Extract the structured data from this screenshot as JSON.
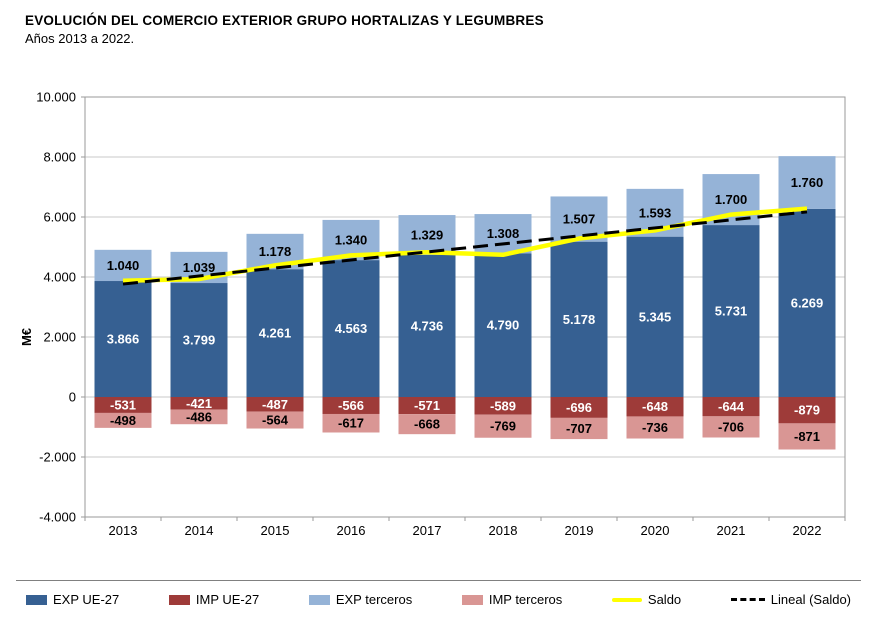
{
  "chart_data": {
    "type": "bar",
    "stacked": true,
    "title": "EVOLUCIÓN DEL COMERCIO EXTERIOR GRUPO HORTALIZAS Y LEGUMBRES",
    "subtitle": "Años 2013 a 2022.",
    "ylabel": "M€",
    "ylim": [
      -4000,
      10000
    ],
    "grid": true,
    "legend_position": "bottom",
    "yticks": {
      "values": [
        10000,
        8000,
        6000,
        4000,
        2000,
        0,
        -2000,
        -4000
      ],
      "labels": [
        "10.000",
        "8.000",
        "6.000",
        "4.000",
        "2.000",
        "0",
        "-2.000",
        "-4.000"
      ]
    },
    "categories": [
      "2013",
      "2014",
      "2015",
      "2016",
      "2017",
      "2018",
      "2019",
      "2020",
      "2021",
      "2022"
    ],
    "series": [
      {
        "name": "EXP UE-27",
        "color": "#366092",
        "label_color": "#ffffff",
        "values": [
          3866,
          3799,
          4261,
          4563,
          4736,
          4790,
          5178,
          5345,
          5731,
          6269
        ],
        "labels": [
          "3.866",
          "3.799",
          "4.261",
          "4.563",
          "4.736",
          "4.790",
          "5.178",
          "5.345",
          "5.731",
          "6.269"
        ]
      },
      {
        "name": "EXP terceros",
        "color": "#95b3d7",
        "label_color": "#000000",
        "values": [
          1040,
          1039,
          1178,
          1340,
          1329,
          1308,
          1507,
          1593,
          1700,
          1760
        ],
        "labels": [
          "1.040",
          "1.039",
          "1.178",
          "1.340",
          "1.329",
          "1.308",
          "1.507",
          "1.593",
          "1.700",
          "1.760"
        ]
      },
      {
        "name": "IMP UE-27",
        "color": "#9e3b39",
        "label_color": "#ffffff",
        "values": [
          -531,
          -421,
          -487,
          -566,
          -571,
          -589,
          -696,
          -648,
          -644,
          -879
        ],
        "labels": [
          "-531",
          "-421",
          "-487",
          "-566",
          "-571",
          "-589",
          "-696",
          "-648",
          "-644",
          "-879"
        ]
      },
      {
        "name": "IMP terceros",
        "color": "#d99694",
        "label_color": "#000000",
        "values": [
          -498,
          -486,
          -564,
          -617,
          -668,
          -769,
          -707,
          -736,
          -706,
          -871
        ],
        "labels": [
          "-498",
          "-486",
          "-564",
          "-617",
          "-668",
          "-769",
          "-707",
          "-736",
          "-706",
          "-871"
        ]
      }
    ],
    "line_series": [
      {
        "name": "Saldo",
        "color": "#ffff00",
        "width": 4.5,
        "dash": "none",
        "values": [
          3877,
          3931,
          4388,
          4720,
          4826,
          4740,
          5282,
          5554,
          6081,
          6279
        ]
      },
      {
        "name": "Lineal (Saldo)",
        "color": "#000000",
        "width": 3,
        "dash": "15 7",
        "trend_endpoints": [
          3765,
          6171
        ]
      }
    ],
    "legend": [
      {
        "label": "EXP UE-27",
        "swatch": "rect",
        "color": "#366092"
      },
      {
        "label": "IMP UE-27",
        "swatch": "rect",
        "color": "#9e3b39"
      },
      {
        "label": "EXP terceros",
        "swatch": "rect",
        "color": "#95b3d7"
      },
      {
        "label": "IMP terceros",
        "swatch": "rect",
        "color": "#d99694"
      },
      {
        "label": "Saldo",
        "swatch": "line",
        "color": "#ffff00"
      },
      {
        "label": "Lineal (Saldo)",
        "swatch": "dashed-line",
        "color": "#000000"
      }
    ]
  }
}
